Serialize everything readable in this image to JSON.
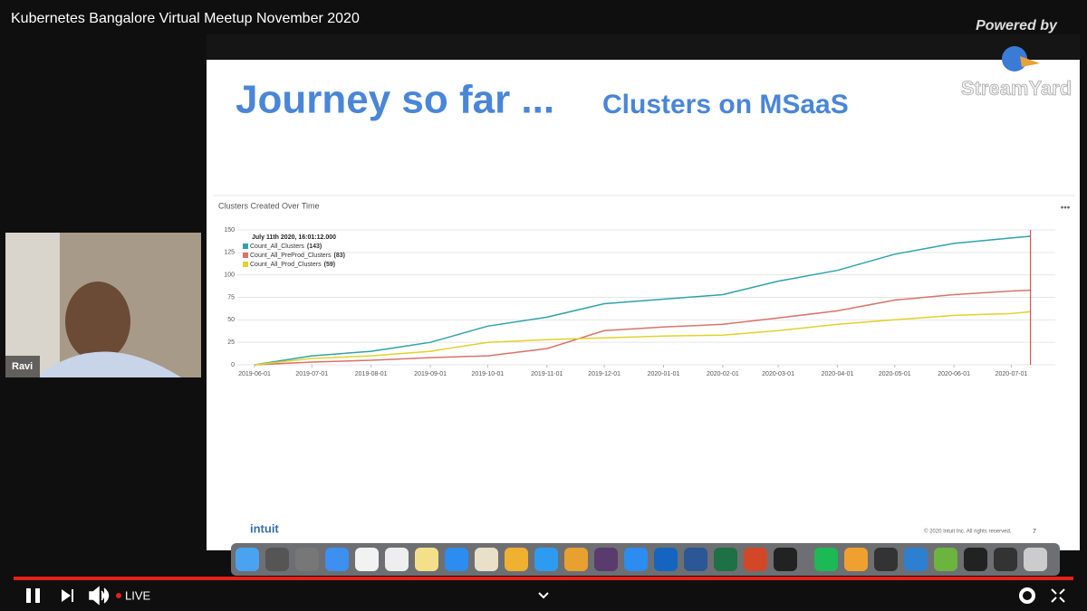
{
  "video": {
    "title": "Kubernetes Bangalore Virtual Meetup November 2020",
    "powered_by": "Powered by",
    "brand": "StreamYard"
  },
  "speaker": {
    "name": "Ravi"
  },
  "slide": {
    "heading": "Journey so far ...",
    "subheading": "Clusters on MSaaS",
    "logo": "intuit",
    "footer": "© 2020 Intuit Inc. All rights reserved.",
    "page": "7"
  },
  "chart_data": {
    "type": "line",
    "title": "Clusters Created Over Time",
    "tooltip_title": "July 11th 2020, 16:01:12.000",
    "x": [
      "2019-06-01",
      "2019-07-01",
      "2019-08-01",
      "2019-09-01",
      "2019-10-01",
      "2019-11-01",
      "2019-12-01",
      "2020-01-01",
      "2020-02-01",
      "2020-03-01",
      "2020-04-01",
      "2020-05-01",
      "2020-06-01",
      "2020-07-01",
      "2020-07-11"
    ],
    "series": [
      {
        "name": "Count_All_Clusters",
        "tooltip_label": "(143)",
        "color": "#2fa3a8",
        "values": [
          0,
          10,
          15,
          25,
          43,
          53,
          68,
          73,
          78,
          93,
          105,
          123,
          135,
          141,
          143
        ]
      },
      {
        "name": "Count_All_PreProd_Clusters",
        "tooltip_label": "(83)",
        "color": "#d9736a",
        "values": [
          0,
          3,
          5,
          8,
          10,
          18,
          38,
          42,
          45,
          52,
          60,
          72,
          78,
          82,
          83
        ]
      },
      {
        "name": "Count_All_Prod_Clusters",
        "tooltip_label": "(59)",
        "color": "#e1d22b",
        "values": [
          0,
          7,
          10,
          15,
          25,
          28,
          30,
          32,
          33,
          38,
          45,
          50,
          55,
          57,
          59
        ]
      }
    ],
    "xlim": [
      "2019-05-23",
      "2020-07-24"
    ],
    "xticks": [
      "2019-06-01",
      "2019-07-01",
      "2019-08-01",
      "2019-09-01",
      "2019-10-01",
      "2019-11-01",
      "2019-12-01",
      "2020-01-01",
      "2020-02-01",
      "2020-03-01",
      "2020-04-01",
      "2020-05-01",
      "2020-06-01",
      "2020-07-01"
    ],
    "ylim": [
      0,
      150
    ],
    "yticks": [
      0,
      25,
      50,
      75,
      100,
      125,
      150
    ],
    "grid": true,
    "cursor_color": "#d9534f"
  },
  "player": {
    "status": "LIVE"
  }
}
